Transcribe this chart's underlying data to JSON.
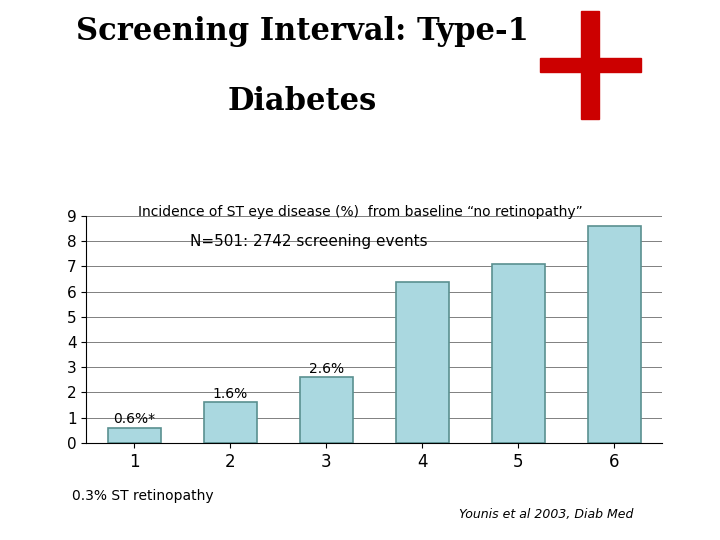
{
  "title_line1": "Screening Interval: Type-1",
  "title_line2": "Diabetes",
  "subtitle": "Incidence of ST eye disease (%)  from baseline “no retinopathy”",
  "annotation": "N=501: 2742 screening events",
  "categories": [
    "1",
    "2",
    "3",
    "4",
    "5",
    "6"
  ],
  "values": [
    0.6,
    1.6,
    2.6,
    6.4,
    7.1,
    8.6
  ],
  "bar_color_face": "#aad8e0",
  "bar_color_edge": "#5a9090",
  "xlabel_bottom": "0.3% ST retinopathy",
  "citation": "Younis et al 2003, Diab Med",
  "bar_labels": [
    "0.6%*",
    "1.6%",
    "2.6%",
    "",
    "",
    ""
  ],
  "ylim": [
    0,
    9
  ],
  "yticks": [
    0,
    1,
    2,
    3,
    4,
    5,
    6,
    7,
    8,
    9
  ],
  "background_color": "#ffffff",
  "cross_color": "#cc0000"
}
